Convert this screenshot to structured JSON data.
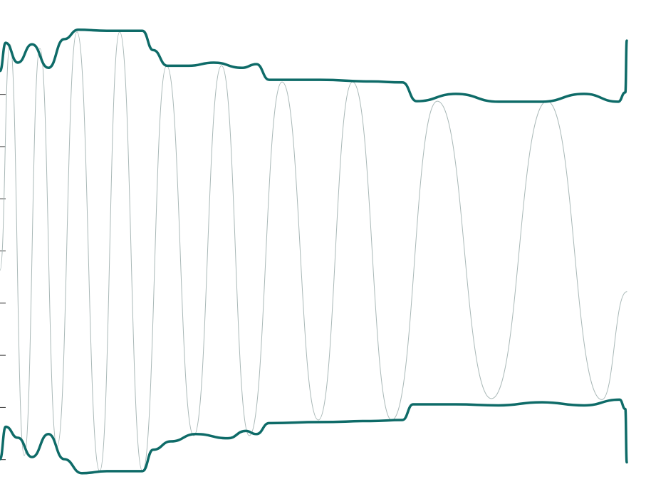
{
  "chart_data": {
    "type": "line",
    "xlim": [
      0,
      907
    ],
    "ylim": [
      -0.85,
      8.81
    ],
    "yticks": [
      0,
      1,
      2,
      3,
      4,
      5,
      6,
      7
    ],
    "series": [
      {
        "color": "#a9b8b7",
        "width": 1,
        "x": [
          0,
          14,
          34,
          56,
          80,
          108,
          140,
          168,
          200,
          234,
          272,
          311,
          350,
          396,
          447,
          495,
          550,
          614,
          690,
          768,
          845,
          880
        ],
        "values": [
          3.63,
          7.96,
          0.08,
          7.88,
          0.25,
          8.2,
          -0.22,
          8.2,
          -0.22,
          7.55,
          0.46,
          7.55,
          0.46,
          7.24,
          0.76,
          7.24,
          0.76,
          6.87,
          1.17,
          6.87,
          1.15,
          3.22
        ]
      },
      {
        "color": "#0e6b68",
        "width": 3.5,
        "x": [
          0,
          8,
          25,
          45,
          68,
          90,
          110,
          150,
          200,
          215,
          235,
          265,
          300,
          340,
          360,
          378,
          450,
          520,
          565,
          585,
          640,
          700,
          760,
          820,
          868,
          878,
          880
        ],
        "values": [
          7.45,
          7.99,
          7.61,
          7.96,
          7.51,
          8.06,
          8.24,
          8.22,
          8.22,
          7.85,
          7.55,
          7.55,
          7.61,
          7.51,
          7.58,
          7.28,
          7.28,
          7.25,
          7.23,
          6.87,
          7.01,
          6.86,
          6.86,
          7.01,
          6.86,
          7.04,
          8.03
        ]
      },
      {
        "color": "#0e6b68",
        "width": 3.5,
        "x": [
          0,
          8,
          25,
          45,
          68,
          90,
          115,
          150,
          200,
          215,
          240,
          275,
          320,
          345,
          360,
          378,
          450,
          520,
          565,
          580,
          640,
          700,
          760,
          820,
          870,
          878,
          880
        ],
        "values": [
          0.01,
          0.63,
          0.42,
          0.05,
          0.49,
          0.01,
          -0.26,
          -0.22,
          -0.22,
          0.19,
          0.35,
          0.49,
          0.41,
          0.55,
          0.49,
          0.7,
          0.72,
          0.74,
          0.76,
          1.06,
          1.06,
          1.04,
          1.1,
          1.04,
          1.15,
          0.97,
          -0.05
        ]
      }
    ]
  }
}
